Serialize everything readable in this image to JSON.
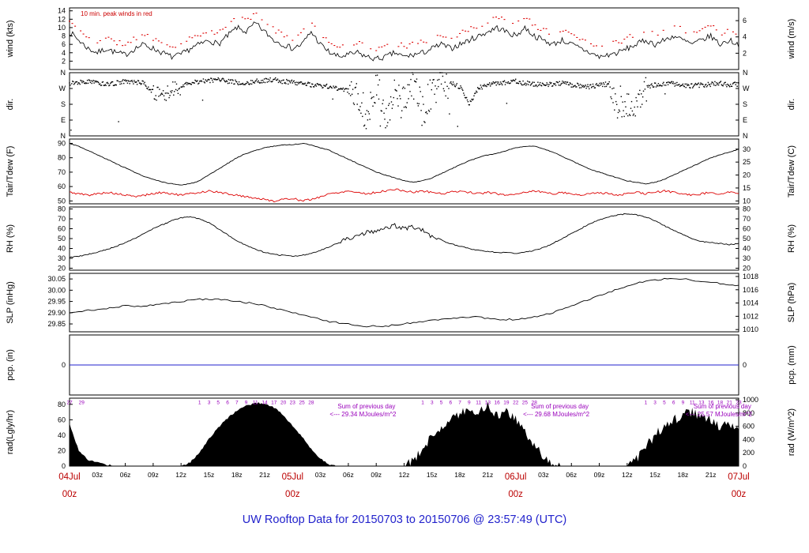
{
  "title": "UW Rooftop Data for 20150703  to  20150706 @ 23:57:49  (UTC)",
  "colors": {
    "series_black": "#000000",
    "series_red": "#dd0000",
    "pcp_blue": "#2222cc",
    "purple": "#9900bb",
    "date_red": "#bb0000",
    "title_blue": "#2222cc",
    "annotation_red": "#cc0000"
  },
  "annotations": {
    "wind_peak_note": "10 min. peak winds in red",
    "rad_sums": [
      {
        "t": 28,
        "title": "Sum of previous day",
        "value": "<--- 29.34 MJoules/m^2"
      },
      {
        "t": 48.8,
        "title": "Sum of previous day",
        "value": "<--- 29.68 MJoules/m^2"
      },
      {
        "t": 66.3,
        "title": "Sum of previous day",
        "value": "<--- 25.57 MJoules/m^2"
      }
    ]
  },
  "x_axis": {
    "ticks": [
      {
        "t": 0,
        "label": "04Jul",
        "sub": "00z",
        "major": true
      },
      {
        "t": 3,
        "label": "03z"
      },
      {
        "t": 6,
        "label": "06z"
      },
      {
        "t": 9,
        "label": "09z"
      },
      {
        "t": 12,
        "label": "12z"
      },
      {
        "t": 15,
        "label": "15z"
      },
      {
        "t": 18,
        "label": "18z"
      },
      {
        "t": 21,
        "label": "21z"
      },
      {
        "t": 24,
        "label": "05Jul",
        "sub": "00z",
        "major": true
      },
      {
        "t": 27,
        "label": "03z"
      },
      {
        "t": 30,
        "label": "06z"
      },
      {
        "t": 33,
        "label": "09z"
      },
      {
        "t": 36,
        "label": "12z"
      },
      {
        "t": 39,
        "label": "15z"
      },
      {
        "t": 42,
        "label": "18z"
      },
      {
        "t": 45,
        "label": "21z"
      },
      {
        "t": 48,
        "label": "06Jul",
        "sub": "00z",
        "major": true
      },
      {
        "t": 51,
        "label": "03z"
      },
      {
        "t": 54,
        "label": "06z"
      },
      {
        "t": 57,
        "label": "09z"
      },
      {
        "t": 60,
        "label": "12z"
      },
      {
        "t": 63,
        "label": "15z"
      },
      {
        "t": 66,
        "label": "18z"
      },
      {
        "t": 69,
        "label": "21z"
      },
      {
        "t": 72,
        "label": "07Jul",
        "sub": "00z",
        "major": true
      }
    ]
  },
  "panels": [
    {
      "id": "wind",
      "label_left": "wind (kts)",
      "label_right": "wind (m/s)",
      "ylim": [
        0,
        14.7
      ],
      "ticks_left": [
        {
          "v": 14,
          "label": "14"
        },
        {
          "v": 12,
          "label": "12"
        },
        {
          "v": 10,
          "label": "10"
        },
        {
          "v": 8,
          "label": "8"
        },
        {
          "v": 6,
          "label": "6"
        },
        {
          "v": 4,
          "label": "4"
        },
        {
          "v": 2,
          "label": "2"
        }
      ],
      "ticks_right": [
        {
          "v": 11.66,
          "label": "6"
        },
        {
          "v": 7.78,
          "label": "4"
        },
        {
          "v": 3.89,
          "label": "2"
        }
      ]
    },
    {
      "id": "dir",
      "label_left": "dir.",
      "label_right": "dir.",
      "ylim": [
        0,
        360
      ],
      "ticks_left": [
        {
          "v": 360,
          "label": "N"
        },
        {
          "v": 270,
          "label": "W"
        },
        {
          "v": 180,
          "label": "S"
        },
        {
          "v": 90,
          "label": "E"
        },
        {
          "v": 0,
          "label": "N"
        }
      ],
      "ticks_right": [
        {
          "v": 360,
          "label": "N"
        },
        {
          "v": 270,
          "label": "W"
        },
        {
          "v": 180,
          "label": "S"
        },
        {
          "v": 90,
          "label": "E"
        },
        {
          "v": 0,
          "label": "N"
        }
      ]
    },
    {
      "id": "temp",
      "label_left": "Tair/Tdew (F)",
      "label_right": "Tair/Tdew (C)",
      "ylim": [
        48,
        93
      ],
      "ticks_left": [
        {
          "v": 90,
          "label": "90"
        },
        {
          "v": 80,
          "label": "80"
        },
        {
          "v": 70,
          "label": "70"
        },
        {
          "v": 60,
          "label": "60"
        },
        {
          "v": 50,
          "label": "50"
        }
      ],
      "ticks_right": [
        {
          "v": 86,
          "label": "30"
        },
        {
          "v": 77,
          "label": "25"
        },
        {
          "v": 68,
          "label": "20"
        },
        {
          "v": 59,
          "label": "15"
        },
        {
          "v": 50,
          "label": "10"
        }
      ]
    },
    {
      "id": "rh",
      "label_left": "RH (%)",
      "label_right": "RH (%)",
      "ylim": [
        18,
        82
      ],
      "ticks_left": [
        {
          "v": 80,
          "label": "80"
        },
        {
          "v": 70,
          "label": "70"
        },
        {
          "v": 60,
          "label": "60"
        },
        {
          "v": 50,
          "label": "50"
        },
        {
          "v": 40,
          "label": "40"
        },
        {
          "v": 30,
          "label": "30"
        },
        {
          "v": 20,
          "label": "20"
        }
      ],
      "ticks_right": [
        {
          "v": 80,
          "label": "80"
        },
        {
          "v": 70,
          "label": "70"
        },
        {
          "v": 60,
          "label": "60"
        },
        {
          "v": 50,
          "label": "50"
        },
        {
          "v": 40,
          "label": "40"
        },
        {
          "v": 30,
          "label": "30"
        },
        {
          "v": 20,
          "label": "20"
        }
      ]
    },
    {
      "id": "slp",
      "label_left": "SLP (inHg)",
      "label_right": "SLP (hPa)",
      "ylim": [
        29.815,
        30.075
      ],
      "ticks_left": [
        {
          "v": 30.05,
          "label": "30.05"
        },
        {
          "v": 30.0,
          "label": "30.00"
        },
        {
          "v": 29.95,
          "label": "29.95"
        },
        {
          "v": 29.9,
          "label": "29.90"
        },
        {
          "v": 29.85,
          "label": "29.85"
        }
      ],
      "ticks_right": [
        {
          "v": 30.061,
          "label": "1018"
        },
        {
          "v": 30.002,
          "label": "1016"
        },
        {
          "v": 29.943,
          "label": "1014"
        },
        {
          "v": 29.884,
          "label": "1012"
        },
        {
          "v": 29.825,
          "label": "1010"
        }
      ]
    },
    {
      "id": "pcp",
      "label_left": "pcp. (in)",
      "label_right": "pcp. (mm)",
      "ylim": [
        -1,
        1
      ],
      "ticks_left": [
        {
          "v": 0,
          "label": "0"
        }
      ],
      "ticks_right": [
        {
          "v": 0,
          "label": "0"
        }
      ]
    },
    {
      "id": "rad",
      "label_left": "rad(Lgly/hr)",
      "label_right": "rad (W/m^2)",
      "ylim": [
        0,
        88
      ],
      "ticks_left": [
        {
          "v": 80,
          "label": "80"
        },
        {
          "v": 60,
          "label": "60"
        },
        {
          "v": 40,
          "label": "40"
        },
        {
          "v": 20,
          "label": "20"
        },
        {
          "v": 0,
          "label": "0"
        }
      ],
      "ticks_right": [
        {
          "v": 86,
          "label": "1000"
        },
        {
          "v": 68.8,
          "label": "800"
        },
        {
          "v": 51.6,
          "label": "600"
        },
        {
          "v": 34.4,
          "label": "400"
        },
        {
          "v": 17.2,
          "label": "200"
        },
        {
          "v": 0,
          "label": "0"
        }
      ]
    }
  ],
  "chart_data": {
    "type": "line",
    "x_unit": "hours since 2015-07-04 00z (UTC)",
    "x_range": [
      0,
      72
    ],
    "series": {
      "wind_kts": {
        "x_step": 1,
        "values": [
          9,
          7,
          5,
          4,
          5,
          4,
          3.5,
          5,
          6,
          5,
          4,
          3,
          3.5,
          5,
          6,
          7,
          6,
          8,
          10,
          9,
          11,
          9,
          7,
          6,
          5,
          6,
          9,
          6,
          4,
          3,
          3.5,
          4,
          3,
          2.5,
          3,
          4,
          3,
          3.5,
          4,
          5,
          6,
          5,
          6,
          7,
          8,
          9,
          10,
          9,
          8,
          10,
          8,
          7,
          6,
          7,
          6,
          5,
          4,
          3,
          3.5,
          4,
          5,
          6,
          7,
          6,
          7,
          8,
          7,
          6,
          7,
          8,
          6,
          7,
          6
        ]
      },
      "wind_peak_kts": {
        "x_step": 1,
        "values": [
          11.5,
          9.5,
          7.5,
          6.5,
          7.5,
          6.5,
          6,
          7.5,
          8.5,
          7.5,
          6.5,
          5.5,
          6,
          7.5,
          8.5,
          9.5,
          8.5,
          10.5,
          12.5,
          11.5,
          13.5,
          11.5,
          9.5,
          8.5,
          7.5,
          8.5,
          11.5,
          8.5,
          6.5,
          5.5,
          6,
          6.5,
          5.5,
          5,
          5.5,
          6.5,
          5.5,
          6,
          6.5,
          7.5,
          8.5,
          7.5,
          8.5,
          9.5,
          10.5,
          11.5,
          12.5,
          11.5,
          10.5,
          12.5,
          10.5,
          9.5,
          8.5,
          9.5,
          8.5,
          7.5,
          6.5,
          5.5,
          6,
          6.5,
          7.5,
          8.5,
          9.5,
          8.5,
          9.5,
          10.5,
          9.5,
          8.5,
          9.5,
          10.5,
          8.5,
          9.5,
          8.5
        ]
      },
      "wind_dir_deg": {
        "x_step": 1,
        "values": [
          300,
          305,
          310,
          300,
          295,
          300,
          310,
          305,
          300,
          250,
          220,
          260,
          280,
          300,
          310,
          315,
          320,
          310,
          305,
          300,
          310,
          315,
          320,
          310,
          305,
          300,
          290,
          285,
          280,
          270,
          260,
          200,
          120,
          300,
          90,
          250,
          180,
          310,
          140,
          260,
          290,
          300,
          280,
          180,
          270,
          295,
          300,
          305,
          310,
          300,
          295,
          290,
          295,
          300,
          290,
          285,
          280,
          290,
          295,
          150,
          180,
          160,
          280,
          290,
          300,
          295,
          290,
          285,
          290,
          295,
          300,
          290,
          295
        ]
      },
      "tair_f": {
        "x_step": 1,
        "values": [
          90,
          88,
          85,
          82,
          79,
          76,
          73,
          70,
          67,
          65,
          63,
          62,
          61,
          62,
          64,
          68,
          72,
          76,
          80,
          83,
          85,
          87,
          88,
          89,
          89,
          90,
          89,
          87,
          85,
          82,
          79,
          76,
          73,
          70,
          68,
          66,
          64,
          63,
          64,
          66,
          69,
          72,
          75,
          78,
          80,
          82,
          83,
          85,
          87,
          88,
          88,
          86,
          84,
          81,
          78,
          75,
          72,
          70,
          68,
          66,
          64,
          63,
          62,
          63,
          65,
          68,
          71,
          74,
          77,
          80,
          82,
          84,
          86
        ]
      },
      "tdew_f": {
        "x_step": 1,
        "values": [
          56,
          55,
          54,
          55,
          56,
          55,
          54,
          53,
          54,
          55,
          56,
          55,
          54,
          55,
          56,
          57,
          56,
          55,
          54,
          53,
          52,
          51,
          50,
          51,
          52,
          50,
          51,
          53,
          55,
          56,
          57,
          56,
          55,
          56,
          57,
          58,
          57,
          56,
          57,
          56,
          55,
          56,
          57,
          56,
          55,
          56,
          55,
          54,
          55,
          56,
          57,
          56,
          55,
          56,
          55,
          54,
          55,
          56,
          55,
          54,
          55,
          56,
          55,
          56,
          57,
          56,
          55,
          54,
          55,
          56,
          55,
          56,
          55
        ]
      },
      "rh_pct": {
        "x_step": 1,
        "values": [
          31,
          32,
          34,
          36,
          39,
          42,
          46,
          50,
          55,
          60,
          64,
          68,
          71,
          72,
          70,
          66,
          60,
          54,
          48,
          43,
          39,
          36,
          34,
          33,
          32,
          33,
          35,
          38,
          42,
          46,
          50,
          53,
          56,
          58,
          60,
          63,
          60,
          62,
          58,
          52,
          48,
          45,
          42,
          40,
          38,
          37,
          36,
          36,
          35,
          36,
          38,
          41,
          45,
          50,
          55,
          60,
          65,
          69,
          72,
          74,
          75,
          74,
          72,
          68,
          63,
          58,
          54,
          50,
          47,
          46,
          45,
          44,
          45
        ]
      },
      "slp_inhg": {
        "x": [
          0,
          2,
          4,
          6,
          8,
          10,
          12,
          14,
          16,
          18,
          20,
          22,
          24,
          26,
          28,
          30,
          32,
          34,
          36,
          38,
          40,
          42,
          44,
          46,
          48,
          50,
          52,
          54,
          56,
          58,
          60,
          62,
          64,
          66,
          68,
          70,
          72
        ],
        "values": [
          29.9,
          29.91,
          29.92,
          29.93,
          29.93,
          29.94,
          29.95,
          29.96,
          29.96,
          29.95,
          29.94,
          29.92,
          29.9,
          29.88,
          29.86,
          29.85,
          29.84,
          29.84,
          29.85,
          29.86,
          29.87,
          29.88,
          29.88,
          29.87,
          29.87,
          29.88,
          29.9,
          29.93,
          29.96,
          29.99,
          30.02,
          30.04,
          30.05,
          30.05,
          30.04,
          30.03,
          30.02
        ]
      },
      "pcp_in": {
        "constant": 0
      },
      "rad_lyhr": {
        "x_step": 1,
        "values": [
          55,
          20,
          8,
          5,
          2,
          0,
          0,
          0,
          0,
          0,
          0,
          0,
          0,
          5,
          18,
          35,
          50,
          62,
          72,
          78,
          82,
          81,
          76,
          66,
          52,
          38,
          22,
          10,
          2,
          0,
          0,
          0,
          0,
          0,
          0,
          0,
          0,
          8,
          22,
          38,
          52,
          60,
          68,
          75,
          70,
          78,
          65,
          72,
          60,
          45,
          28,
          12,
          3,
          0,
          0,
          0,
          0,
          0,
          0,
          0,
          0,
          10,
          25,
          40,
          52,
          60,
          66,
          70,
          65,
          58,
          50,
          55,
          45
        ]
      }
    },
    "rad_cum_labels": [
      {
        "t": 0,
        "v": "27"
      },
      {
        "t": 1.3,
        "v": "29"
      },
      {
        "t": 14,
        "v": "1"
      },
      {
        "t": 15,
        "v": "3"
      },
      {
        "t": 16,
        "v": "5"
      },
      {
        "t": 17,
        "v": "6"
      },
      {
        "t": 18,
        "v": "7"
      },
      {
        "t": 19,
        "v": "9"
      },
      {
        "t": 20,
        "v": "11"
      },
      {
        "t": 21,
        "v": "14"
      },
      {
        "t": 22,
        "v": "17"
      },
      {
        "t": 23,
        "v": "20"
      },
      {
        "t": 24,
        "v": "23"
      },
      {
        "t": 25,
        "v": "25"
      },
      {
        "t": 26,
        "v": "28"
      },
      {
        "t": 38,
        "v": "1"
      },
      {
        "t": 39,
        "v": "3"
      },
      {
        "t": 40,
        "v": "5"
      },
      {
        "t": 41,
        "v": "6"
      },
      {
        "t": 42,
        "v": "7"
      },
      {
        "t": 43,
        "v": "9"
      },
      {
        "t": 44,
        "v": "11"
      },
      {
        "t": 45,
        "v": "13"
      },
      {
        "t": 46,
        "v": "16"
      },
      {
        "t": 47,
        "v": "19"
      },
      {
        "t": 48,
        "v": "22"
      },
      {
        "t": 49,
        "v": "25"
      },
      {
        "t": 50,
        "v": "28"
      },
      {
        "t": 62,
        "v": "1"
      },
      {
        "t": 63,
        "v": "3"
      },
      {
        "t": 64,
        "v": "5"
      },
      {
        "t": 65,
        "v": "6"
      },
      {
        "t": 66,
        "v": "9"
      },
      {
        "t": 67,
        "v": "11"
      },
      {
        "t": 68,
        "v": "13"
      },
      {
        "t": 69,
        "v": "16"
      },
      {
        "t": 70,
        "v": "18"
      },
      {
        "t": 71,
        "v": "21"
      },
      {
        "t": 72,
        "v": "23"
      }
    ]
  }
}
